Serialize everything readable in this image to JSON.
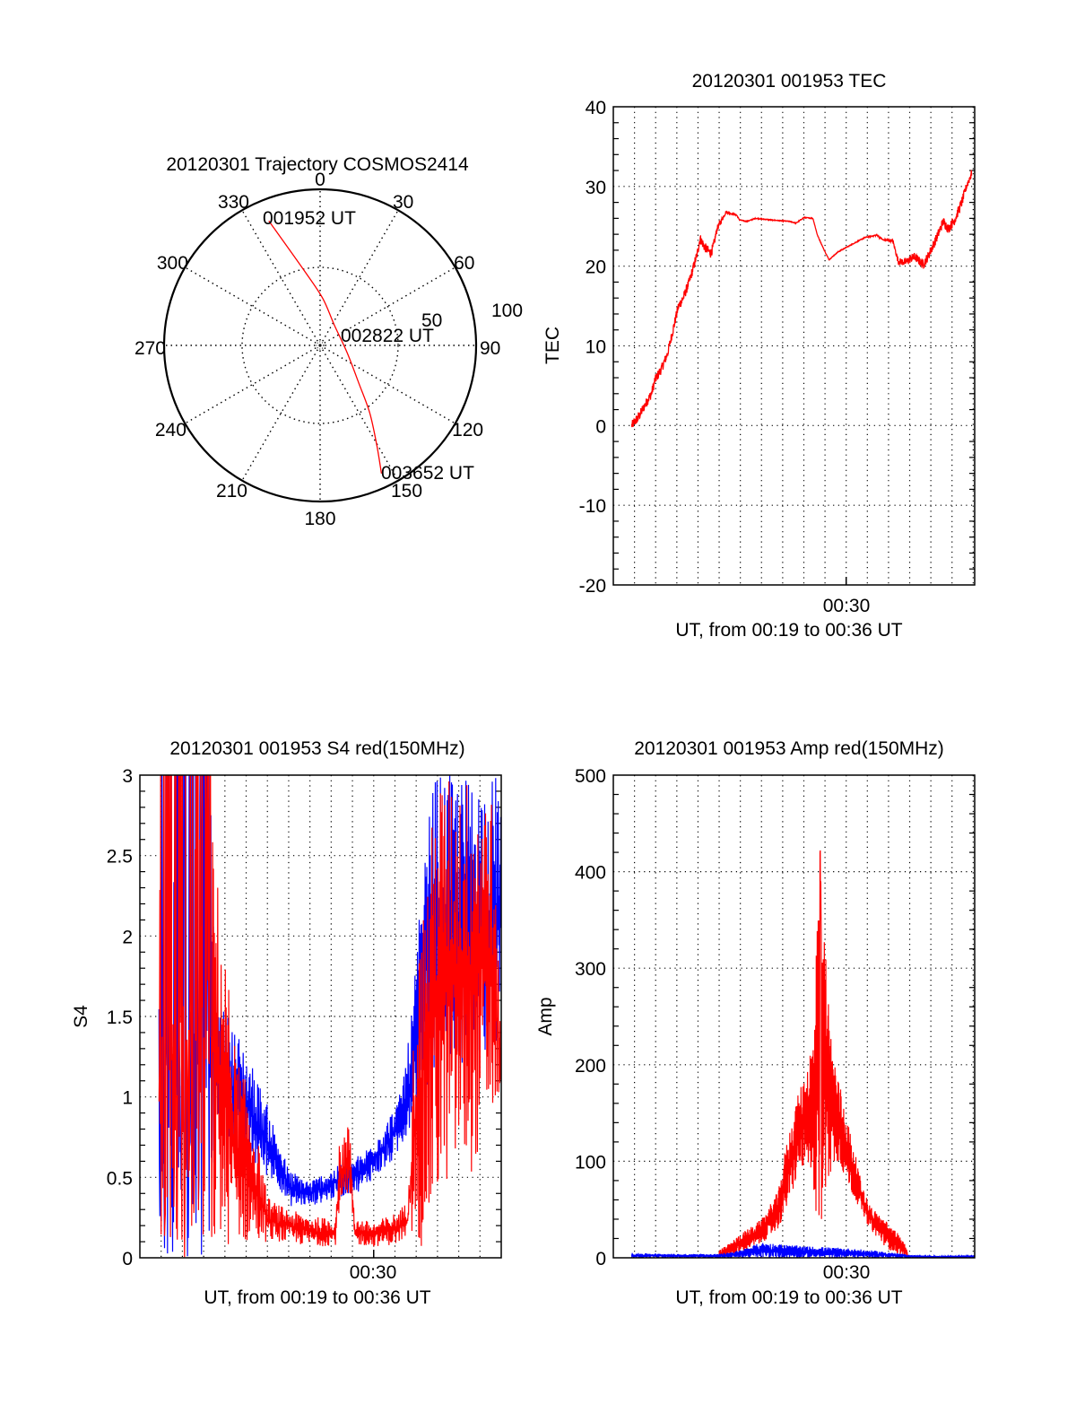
{
  "chart_data": [
    {
      "type": "polar",
      "title": "20120301 Trajectory COSMOS2414",
      "azimuth_labels": [
        "0",
        "30",
        "60",
        "90",
        "120",
        "150",
        "180",
        "210",
        "240",
        "270",
        "300",
        "330"
      ],
      "radius_labels": [
        "50",
        "100"
      ],
      "rlim": [
        0,
        100
      ],
      "grid": true,
      "series": [
        {
          "name": "trajectory",
          "color": "#ff0000",
          "points": [
            [
              337.6,
              86.3
            ],
            [
              348.3,
              48.4
            ],
            [
              3.3,
              30.1
            ],
            [
              36,
              15.7
            ],
            [
              104.9,
              17.9
            ],
            [
              134.3,
              34.7
            ],
            [
              143.7,
              53.8
            ],
            [
              150.6,
              74.3
            ],
            [
              154.4,
              91
            ]
          ]
        }
      ],
      "annotations": [
        "001952 UT",
        "002822 UT",
        "003652 UT"
      ]
    },
    {
      "type": "line",
      "title": "20120301 001953 TEC",
      "xlabel": "UT, from 00:19 to 00:36 UT",
      "ylabel": "TEC",
      "xlim_minutes": [
        19.0,
        36.07
      ],
      "ylim": [
        -20,
        40
      ],
      "yticks": [
        "40",
        "30",
        "20",
        "10",
        "0",
        "-10",
        "-20"
      ],
      "xticks": [
        {
          "minute": 30,
          "label": "00:30"
        }
      ],
      "grid": true,
      "series": [
        {
          "name": "TEC",
          "color": "#ff0000",
          "x_minutes": [
            19.87,
            20.2,
            20.5,
            20.8,
            20.97,
            21.27,
            21.56,
            21.81,
            22.07,
            22.32,
            22.58,
            22.8,
            22.97,
            23.1,
            23.31,
            23.6,
            23.73,
            23.9,
            24.32,
            24.83,
            24.96,
            25.3,
            25.72,
            26.44,
            27.37,
            27.63,
            28.01,
            28.43,
            28.64,
            28.98,
            29.19,
            29.62,
            30.25,
            30.89,
            31.44,
            31.74,
            32.2,
            32.46,
            32.8,
            33.22,
            33.64,
            33.86,
            34.28,
            34.58,
            34.83,
            35.13,
            35.47,
            35.68,
            35.93
          ],
          "y": [
            0,
            1.1,
            2.6,
            4.0,
            5.7,
            7.1,
            9.0,
            11.9,
            14.9,
            16.1,
            18.0,
            20.0,
            21.6,
            23.5,
            22.4,
            21.6,
            22.5,
            24.7,
            26.8,
            26.4,
            25.8,
            25.6,
            26.0,
            25.8,
            25.6,
            25.4,
            26.1,
            26.0,
            23.9,
            21.9,
            20.8,
            21.8,
            22.7,
            23.6,
            23.9,
            23.3,
            23.2,
            20.6,
            20.5,
            21.2,
            20.2,
            21.2,
            23.6,
            25.6,
            24.7,
            25.8,
            28.1,
            30.0,
            31.7
          ],
          "noise_amplitude": [
            0.6,
            0.6,
            0.6,
            0.6,
            0.6,
            0.6,
            0.6,
            0.6,
            0.6,
            0.6,
            0.6,
            0.6,
            0.6,
            0.6,
            0.6,
            0.6,
            0.6,
            0.4,
            0.2,
            0.1,
            0.05,
            0.05,
            0.05,
            0.05,
            0.05,
            0.05,
            0.05,
            0.05,
            0.05,
            0.05,
            0.05,
            0.05,
            0.05,
            0.05,
            0.1,
            0.1,
            0.2,
            0.4,
            0.5,
            0.5,
            0.6,
            0.6,
            0.6,
            0.6,
            0.6,
            0.6,
            0.6,
            0.5,
            0.5
          ]
        }
      ]
    },
    {
      "type": "line",
      "title": "20120301 001953 S4 red(150MHz)",
      "xlabel": "UT, from 00:19 to 00:36 UT",
      "ylabel": "S4",
      "xlim_minutes": [
        19.0,
        36.0
      ],
      "ylim": [
        0,
        3
      ],
      "yticks": [
        "3",
        "2.5",
        "2",
        "1.5",
        "1",
        "0.5",
        "0"
      ],
      "xticks": [
        {
          "minute": 30,
          "label": "00:30"
        }
      ],
      "grid": true,
      "series": [
        {
          "name": "S4 blue",
          "color": "#0000ff",
          "envelope_minutes": [
            19.9,
            21.0,
            22.3,
            22.6,
            23.2,
            24.0,
            25.0,
            25.5,
            26.0,
            27.0,
            28.0,
            29.0,
            29.5,
            30.0,
            30.6,
            31.2,
            31.7,
            32.2,
            32.8,
            33.5,
            34.5,
            35.5,
            36.0
          ],
          "low": [
            0.0,
            0.0,
            0.0,
            0.9,
            0.7,
            0.6,
            0.5,
            0.45,
            0.32,
            0.32,
            0.36,
            0.4,
            0.42,
            0.5,
            0.55,
            0.65,
            0.8,
            0.95,
            1.1,
            1.2,
            1.2,
            1.25,
            1.3
          ],
          "high": [
            3.0,
            3.0,
            3.0,
            1.6,
            1.5,
            1.3,
            0.95,
            0.75,
            0.55,
            0.48,
            0.55,
            0.62,
            0.65,
            0.75,
            0.85,
            1.0,
            1.4,
            2.2,
            3.0,
            3.0,
            3.0,
            3.0,
            3.0
          ]
        },
        {
          "name": "S4 red",
          "color": "#ff0000",
          "envelope_minutes": [
            19.9,
            21.0,
            22.3,
            23.5,
            24.2,
            25.0,
            25.5,
            26.5,
            27.5,
            28.2,
            28.4,
            28.9,
            29.1,
            30.0,
            31.0,
            31.6,
            31.9,
            32.3,
            33.0,
            33.6,
            34.5,
            35.5,
            36.0
          ],
          "low": [
            0.0,
            0.0,
            0.0,
            0.1,
            0.08,
            0.1,
            0.1,
            0.08,
            0.07,
            0.08,
            0.3,
            0.3,
            0.08,
            0.07,
            0.08,
            0.12,
            0.1,
            0.05,
            0.3,
            0.5,
            0.5,
            0.8,
            1.0
          ],
          "high": [
            3.0,
            3.0,
            2.8,
            1.3,
            1.0,
            0.38,
            0.33,
            0.28,
            0.25,
            0.25,
            0.75,
            0.85,
            0.25,
            0.22,
            0.28,
            0.35,
            1.5,
            2.2,
            3.0,
            3.0,
            3.0,
            3.0,
            1.4
          ]
        }
      ]
    },
    {
      "type": "line",
      "title": "20120301 001953 Amp red(150MHz)",
      "xlabel": "UT, from 00:19 to 00:36 UT",
      "ylabel": "Amp",
      "xlim_minutes": [
        19.0,
        36.07
      ],
      "ylim": [
        0,
        500
      ],
      "yticks": [
        "500",
        "400",
        "300",
        "200",
        "100",
        "0"
      ],
      "xticks": [
        {
          "minute": 30,
          "label": "00:30"
        }
      ],
      "grid": true,
      "series": [
        {
          "name": "Amp red",
          "color": "#ff0000",
          "envelope_minutes": [
            24.0,
            24.5,
            25.0,
            25.5,
            26.0,
            26.4,
            26.8,
            27.1,
            27.5,
            27.8,
            28.1,
            28.4,
            28.6,
            28.8,
            29.0,
            29.3,
            29.6,
            30.0,
            30.4,
            30.7,
            31.0,
            31.3,
            31.6,
            31.9,
            32.3,
            32.6,
            32.9
          ],
          "low": [
            0,
            2,
            5,
            10,
            15,
            22,
            30,
            45,
            70,
            90,
            95,
            60,
            40,
            30,
            50,
            90,
            100,
            80,
            60,
            50,
            35,
            25,
            18,
            10,
            5,
            2,
            0
          ],
          "high": [
            8,
            15,
            25,
            32,
            40,
            55,
            70,
            110,
            150,
            175,
            195,
            230,
            330,
            447,
            330,
            230,
            190,
            150,
            110,
            80,
            60,
            50,
            45,
            38,
            30,
            20,
            10
          ]
        },
        {
          "name": "Amp blue",
          "color": "#0000ff",
          "envelope_minutes": [
            19.87,
            22.0,
            24.0,
            25.0,
            26.0,
            27.0,
            28.0,
            29.0,
            30.0,
            31.0,
            32.0,
            33.0,
            34.0,
            35.0,
            36.07
          ],
          "low": [
            0,
            0,
            0,
            0,
            0,
            0,
            0,
            0,
            0,
            0,
            0,
            0,
            0,
            0,
            0
          ],
          "high": [
            5,
            4,
            4,
            8,
            16,
            14,
            12,
            11,
            10,
            8,
            6,
            3,
            2,
            2,
            3
          ]
        }
      ]
    }
  ]
}
